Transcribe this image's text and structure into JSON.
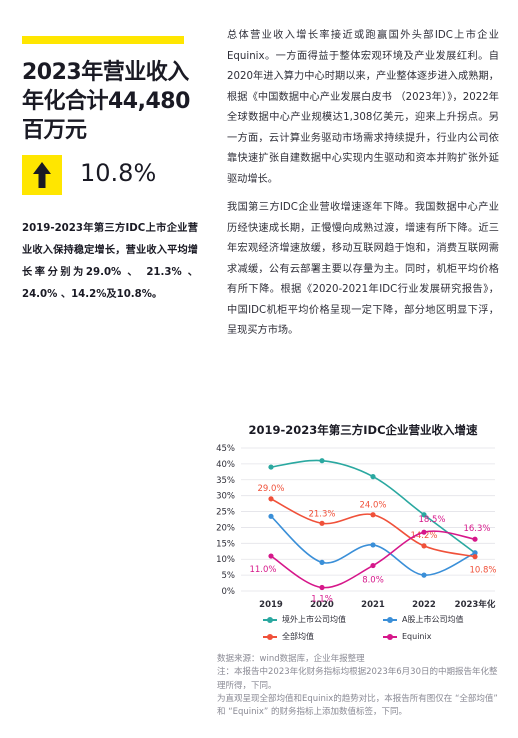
{
  "headline": "2023年营业收入年化合计44,480百万元",
  "growth": {
    "icon": "up-arrow-icon",
    "value": "10.8%"
  },
  "left_paragraph": "2019-2023年第三方IDC上市企业营业收入保持稳定增长，营业收入平均增长率分别为29.0% 、 21.3% 、 24.0% 、14.2%及10.8%。",
  "right_paragraphs": [
    "总体营业收入增长率接近或跑赢国外头部IDC上市企业Equinix。一方面得益于整体宏观环境及产业发展红利。自2020年进入算力中心时期以来，产业整体逐步进入成熟期，根据《中国数据中心产业发展白皮书 （2023年）》，2022年全球数据中心产业规模达1,308亿美元，迎来上升拐点。另一方面，云计算业务驱动市场需求持续提升，行业内公司依靠快速扩张自建数据中心实现内生驱动和资本并购扩张外延驱动增长。",
    "我国第三方IDC企业营收增速逐年下降。我国数据中心产业历经快速成长期，正慢慢向成熟过渡，增速有所下降。近三年宏观经济增速放缓，移动互联网趋于饱和，消费互联网需求减缓，公有云部署主要以存量为主。同时，机柜平均价格有所下降。根据《2020-2021年IDC行业发展研究报告》，中国IDC机柜平均价格呈现一定下降，部分地区明显下浮，呈现买方市场。"
  ],
  "chart_data": {
    "type": "line",
    "title": "2019-2023年第三方IDC企业营业收入增速",
    "categories": [
      "2019",
      "2020",
      "2021",
      "2022",
      "2023年化"
    ],
    "y_ticks": [
      "0%",
      "5%",
      "10%",
      "15%",
      "20%",
      "25%",
      "30%",
      "35%",
      "40%",
      "45%"
    ],
    "ylim": [
      0,
      45
    ],
    "grid": true,
    "legend_position": "bottom",
    "series": [
      {
        "name": "境外上市公司均值",
        "color": "#2aa8a0",
        "values": [
          39.0,
          41.0,
          36.0,
          24.0,
          12.0
        ],
        "labels": null
      },
      {
        "name": "A股上市公司均值",
        "color": "#3a8fd8",
        "values": [
          23.5,
          9.0,
          14.5,
          5.0,
          12.0
        ],
        "labels": null
      },
      {
        "name": "全部均值",
        "color": "#f0513a",
        "values": [
          29.0,
          21.3,
          24.0,
          14.2,
          10.8
        ],
        "labels": [
          "29.0%",
          "21.3%",
          "24.0%",
          "14.2%",
          "10.8%"
        ]
      },
      {
        "name": "Equinix",
        "color": "#d6178a",
        "values": [
          11.0,
          1.1,
          8.0,
          18.5,
          16.3
        ],
        "labels": [
          "11.0%",
          "1.1%",
          "8.0%",
          "18.5%",
          "16.3%"
        ]
      }
    ]
  },
  "source_note": "数据来源：wind数据库，企业年报整理\n注：本报告中2023年化财务指标均根据2023年6月30日的中期报告年化整理所得，下同。\n为直观呈现全部均值和Equinix的趋势对比，本报告所有图仅在 “全部均值” 和 “Equinix” 的财务指标上添加数值标签，下同。"
}
